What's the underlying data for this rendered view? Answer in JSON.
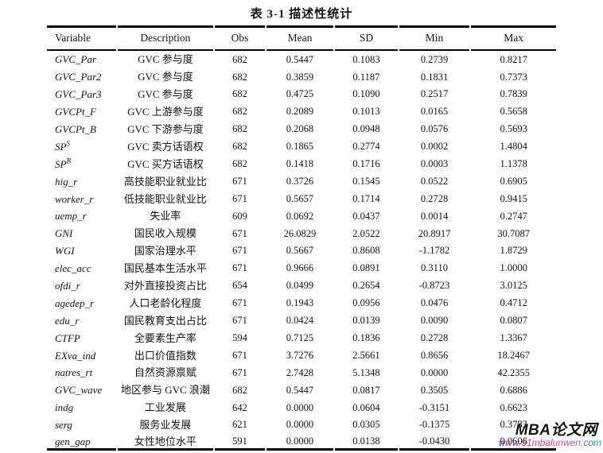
{
  "page": {
    "title": "表 3-1 描述性统计"
  },
  "watermark": {
    "site_name": "MBA论文网",
    "site_url": "www.51mbalunwen.com",
    "name_color": "#151515",
    "url_gradient": [
      "#7b2fbe",
      "#e8388a",
      "#12a3a3"
    ]
  },
  "table": {
    "columns": [
      "Variable",
      "Description",
      "Obs",
      "Mean",
      "SD",
      "Min",
      "Max"
    ],
    "rows": [
      {
        "variable": "GVC_Par",
        "variable_sup": "",
        "description": "GVC 参与度",
        "obs": "682",
        "mean": "0.5447",
        "sd": "0.1083",
        "min": "0.2739",
        "max": "0.8217"
      },
      {
        "variable": "GVC_Par2",
        "variable_sup": "",
        "description": "GVC 参与度",
        "obs": "682",
        "mean": "0.3859",
        "sd": "0.1187",
        "min": "0.1831",
        "max": "0.7373"
      },
      {
        "variable": "GVC_Par3",
        "variable_sup": "",
        "description": "GVC 参与度",
        "obs": "682",
        "mean": "0.4725",
        "sd": "0.1090",
        "min": "0.2517",
        "max": "0.7839"
      },
      {
        "variable": "GVCPt_F",
        "variable_sup": "",
        "description": "GVC 上游参与度",
        "obs": "682",
        "mean": "0.2089",
        "sd": "0.1013",
        "min": "0.0165",
        "max": "0.5658"
      },
      {
        "variable": "GVCPt_B",
        "variable_sup": "",
        "description": "GVC 下游参与度",
        "obs": "682",
        "mean": "0.2068",
        "sd": "0.0948",
        "min": "0.0576",
        "max": "0.5693"
      },
      {
        "variable": "SP",
        "variable_sup": "S",
        "description": "GVC 卖方话语权",
        "obs": "682",
        "mean": "0.1865",
        "sd": "0.2774",
        "min": "0.0002",
        "max": "1.4804"
      },
      {
        "variable": "SP",
        "variable_sup": "B",
        "description": "GVC 买方话语权",
        "obs": "682",
        "mean": "0.1418",
        "sd": "0.1716",
        "min": "0.0003",
        "max": "1.1378"
      },
      {
        "variable": "hig_r",
        "variable_sup": "",
        "description": "高技能职业就业比",
        "obs": "671",
        "mean": "0.3726",
        "sd": "0.1545",
        "min": "0.0522",
        "max": "0.6905"
      },
      {
        "variable": "worker_r",
        "variable_sup": "",
        "description": "低技能职业就业比",
        "obs": "671",
        "mean": "0.5657",
        "sd": "0.1714",
        "min": "0.2728",
        "max": "0.9415"
      },
      {
        "variable": "uemp_r",
        "variable_sup": "",
        "description": "失业率",
        "obs": "609",
        "mean": "0.0692",
        "sd": "0.0437",
        "min": "0.0014",
        "max": "0.2747"
      },
      {
        "variable": "GNI",
        "variable_sup": "",
        "description": "国民收入规模",
        "obs": "671",
        "mean": "26.0829",
        "sd": "2.0522",
        "min": "20.8917",
        "max": "30.7087"
      },
      {
        "variable": "WGI",
        "variable_sup": "",
        "description": "国家治理水平",
        "obs": "671",
        "mean": "0.5667",
        "sd": "0.8608",
        "min": "-1.1782",
        "max": "1.8729"
      },
      {
        "variable": "elec_acc",
        "variable_sup": "",
        "description": "国民基本生活水平",
        "obs": "671",
        "mean": "0.9666",
        "sd": "0.0891",
        "min": "0.3110",
        "max": "1.0000"
      },
      {
        "variable": "ofdi_r",
        "variable_sup": "",
        "description": "对外直接投资占比",
        "obs": "654",
        "mean": "0.0499",
        "sd": "0.2654",
        "min": "-0.8723",
        "max": "3.0125"
      },
      {
        "variable": "agedep_r",
        "variable_sup": "",
        "description": "人口老龄化程度",
        "obs": "671",
        "mean": "0.1943",
        "sd": "0.0956",
        "min": "0.0476",
        "max": "0.4712"
      },
      {
        "variable": "edu_r",
        "variable_sup": "",
        "description": "国民教育支出占比",
        "obs": "671",
        "mean": "0.0424",
        "sd": "0.0139",
        "min": "0.0090",
        "max": "0.0807"
      },
      {
        "variable": "CTFP",
        "variable_sup": "",
        "description": "全要素生产率",
        "obs": "594",
        "mean": "0.7125",
        "sd": "0.1836",
        "min": "0.2728",
        "max": "1.3367"
      },
      {
        "variable": "EXva_ind",
        "variable_sup": "",
        "description": "出口价值指数",
        "obs": "671",
        "mean": "3.7276",
        "sd": "2.5661",
        "min": "0.8656",
        "max": "18.2467"
      },
      {
        "variable": "natres_rt",
        "variable_sup": "",
        "description": "自然资源禀赋",
        "obs": "671",
        "mean": "2.7428",
        "sd": "5.1348",
        "min": "0.0000",
        "max": "42.2355"
      },
      {
        "variable": "GVC_wave",
        "variable_sup": "",
        "description": "地区参与 GVC 浪潮",
        "obs": "682",
        "mean": "0.5447",
        "sd": "0.0817",
        "min": "0.3505",
        "max": "0.6886"
      },
      {
        "variable": "indg",
        "variable_sup": "",
        "description": "工业发展",
        "obs": "642",
        "mean": "0.0000",
        "sd": "0.0604",
        "min": "-0.3151",
        "max": "0.6623"
      },
      {
        "variable": "serg",
        "variable_sup": "",
        "description": "服务业发展",
        "obs": "621",
        "mean": "0.0000",
        "sd": "0.0305",
        "min": "-0.1375",
        "max": "0.3783"
      },
      {
        "variable": "gen_gap",
        "variable_sup": "",
        "description": "女性地位水平",
        "obs": "591",
        "mean": "0.0000",
        "sd": "0.0138",
        "min": "-0.0430",
        "max": "0.0606"
      }
    ]
  }
}
